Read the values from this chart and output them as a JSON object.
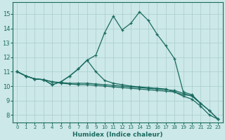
{
  "xlabel": "Humidex (Indice chaleur)",
  "xlim": [
    -0.5,
    23.5
  ],
  "ylim": [
    7.5,
    15.8
  ],
  "yticks": [
    8,
    9,
    10,
    11,
    12,
    13,
    14,
    15
  ],
  "xticks": [
    0,
    1,
    2,
    3,
    4,
    5,
    6,
    7,
    8,
    9,
    10,
    11,
    12,
    13,
    14,
    15,
    16,
    17,
    18,
    19,
    20,
    21,
    22,
    23
  ],
  "bg_color": "#cce8e8",
  "grid_color": "#aacccc",
  "line_color": "#1a6b60",
  "lines": [
    {
      "x": [
        0,
        1,
        2,
        3,
        4,
        5,
        6,
        7,
        8,
        9,
        10,
        11,
        12,
        13,
        14,
        15,
        16,
        17,
        18,
        19,
        20,
        21,
        22,
        23
      ],
      "y": [
        11.0,
        10.7,
        10.5,
        10.45,
        10.3,
        10.25,
        10.2,
        10.2,
        10.2,
        10.15,
        10.1,
        10.05,
        10.0,
        9.95,
        9.9,
        9.85,
        9.8,
        9.75,
        9.7,
        9.5,
        9.3,
        8.8,
        8.3,
        7.7
      ]
    },
    {
      "x": [
        0,
        1,
        2,
        3,
        4,
        5,
        6,
        7,
        8,
        9,
        10,
        11,
        12,
        13,
        14,
        15,
        16,
        17,
        18,
        19,
        20,
        21,
        22,
        23
      ],
      "y": [
        11.0,
        10.7,
        10.5,
        10.45,
        10.3,
        10.2,
        10.15,
        10.1,
        10.1,
        10.05,
        10.0,
        9.95,
        9.9,
        9.85,
        9.8,
        9.75,
        9.7,
        9.65,
        9.6,
        9.3,
        9.1,
        8.6,
        8.0,
        7.7
      ]
    },
    {
      "x": [
        0,
        1,
        2,
        3,
        4,
        5,
        6,
        7,
        8,
        9,
        10,
        11,
        12,
        13,
        14,
        15,
        16,
        17,
        18,
        19,
        20,
        21
      ],
      "y": [
        11.0,
        10.7,
        10.5,
        10.45,
        10.1,
        10.3,
        10.7,
        11.2,
        11.8,
        12.15,
        13.7,
        14.85,
        13.9,
        14.35,
        15.15,
        14.55,
        13.6,
        12.8,
        11.9,
        9.6,
        9.4,
        8.8
      ]
    },
    {
      "x": [
        0,
        1,
        2,
        3,
        4,
        5,
        6,
        7,
        8,
        9,
        10,
        11,
        12,
        13,
        14,
        15,
        16,
        17,
        18,
        19,
        20,
        21,
        22,
        23
      ],
      "y": [
        11.0,
        10.7,
        10.5,
        10.45,
        10.1,
        10.3,
        10.7,
        11.2,
        11.8,
        11.0,
        10.4,
        10.2,
        10.1,
        10.0,
        9.95,
        9.9,
        9.85,
        9.8,
        9.6,
        9.4,
        9.35,
        8.8,
        8.3,
        7.7
      ]
    }
  ]
}
